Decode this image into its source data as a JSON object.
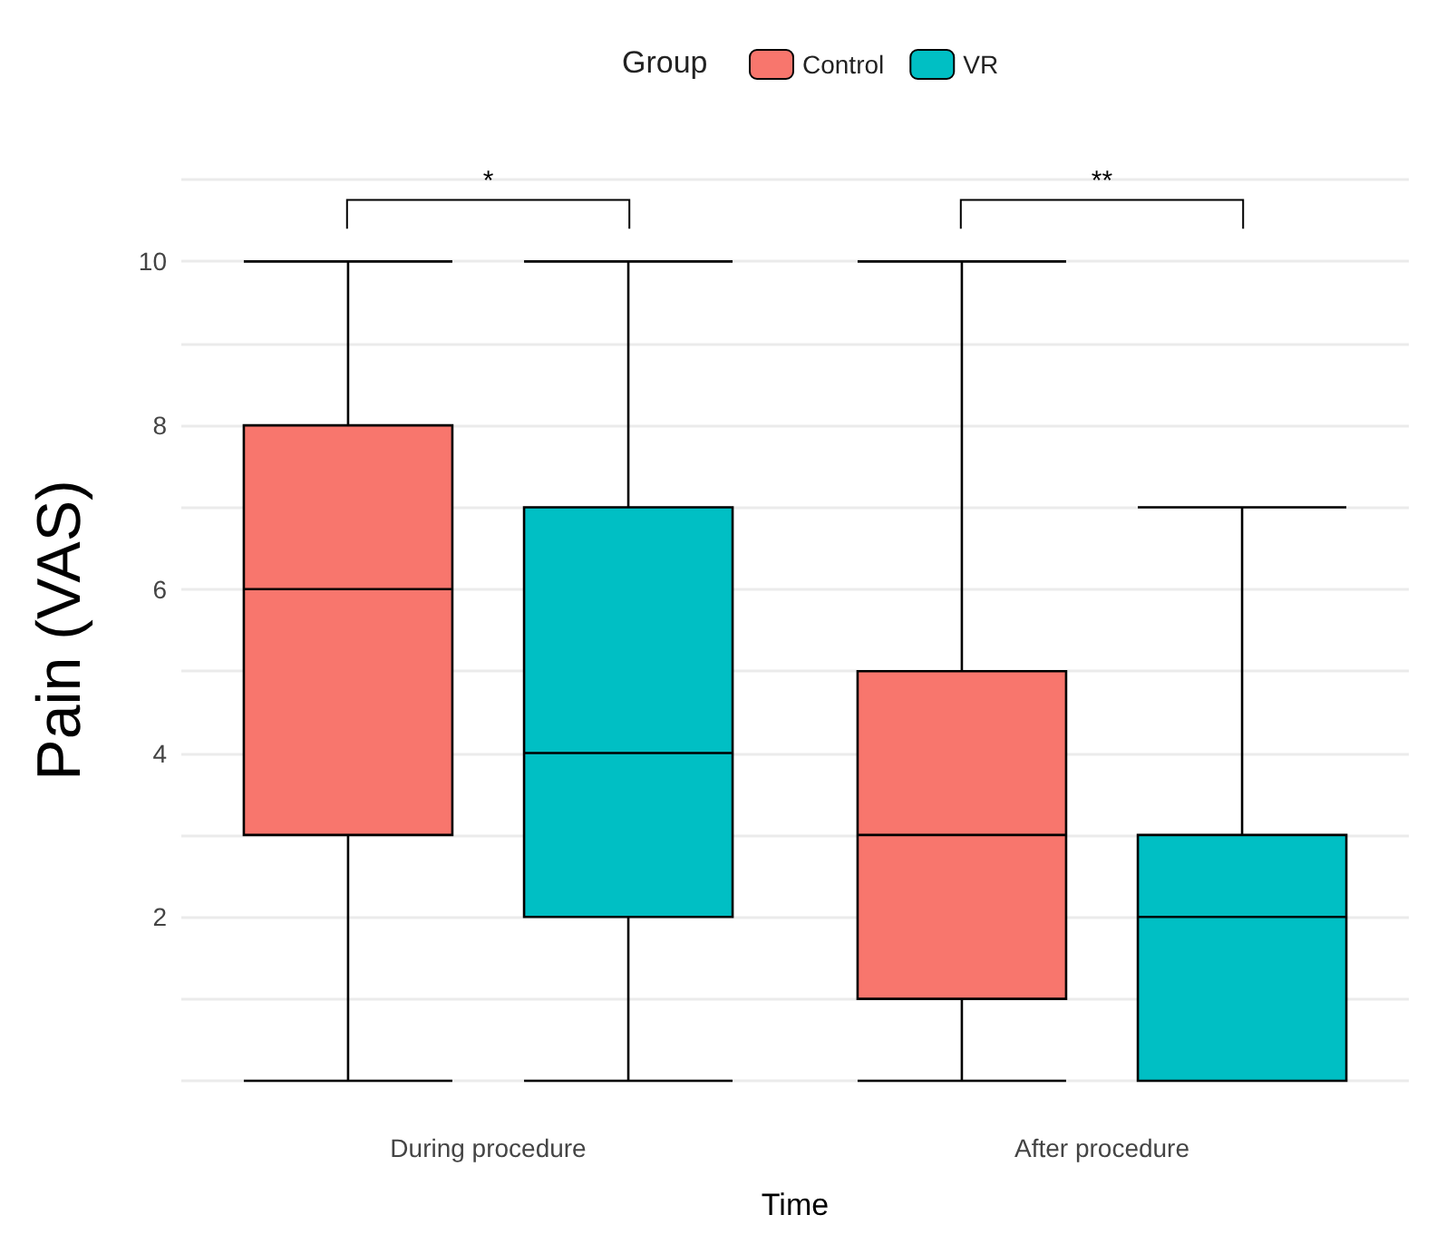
{
  "chart_data": {
    "type": "box",
    "xlabel": "Time",
    "ylabel": "Pain (VAS)",
    "legend_title": "Group",
    "legend": "top",
    "grid": "y",
    "categories": [
      "During procedure",
      "After procedure"
    ],
    "ylim": [
      0,
      11
    ],
    "yticks": [
      {
        "value": 0,
        "label": null
      },
      {
        "value": 1,
        "label": null
      },
      2,
      {
        "value": 3,
        "label": null
      },
      4,
      {
        "value": 5,
        "label": null
      },
      6,
      {
        "value": 7,
        "label": null
      },
      8,
      {
        "value": 9,
        "label": null
      },
      10,
      {
        "value": 11,
        "label": null
      }
    ],
    "series": [
      {
        "name": "Control",
        "color": "#f8766d",
        "boxes": [
          {
            "low": 0,
            "q1": 3,
            "median": 6,
            "q3": 8,
            "high": 10
          },
          {
            "low": 0,
            "q1": 1,
            "median": 3,
            "q3": 5,
            "high": 10
          }
        ]
      },
      {
        "name": "VR",
        "color": "#00bfc4",
        "boxes": [
          {
            "low": 0,
            "q1": 2,
            "median": 4,
            "q3": 7,
            "high": 10
          },
          {
            "low": 0,
            "q1": 0,
            "median": 2,
            "q3": 3,
            "high": 7
          }
        ]
      }
    ],
    "annotations": [
      "*",
      "**"
    ]
  }
}
